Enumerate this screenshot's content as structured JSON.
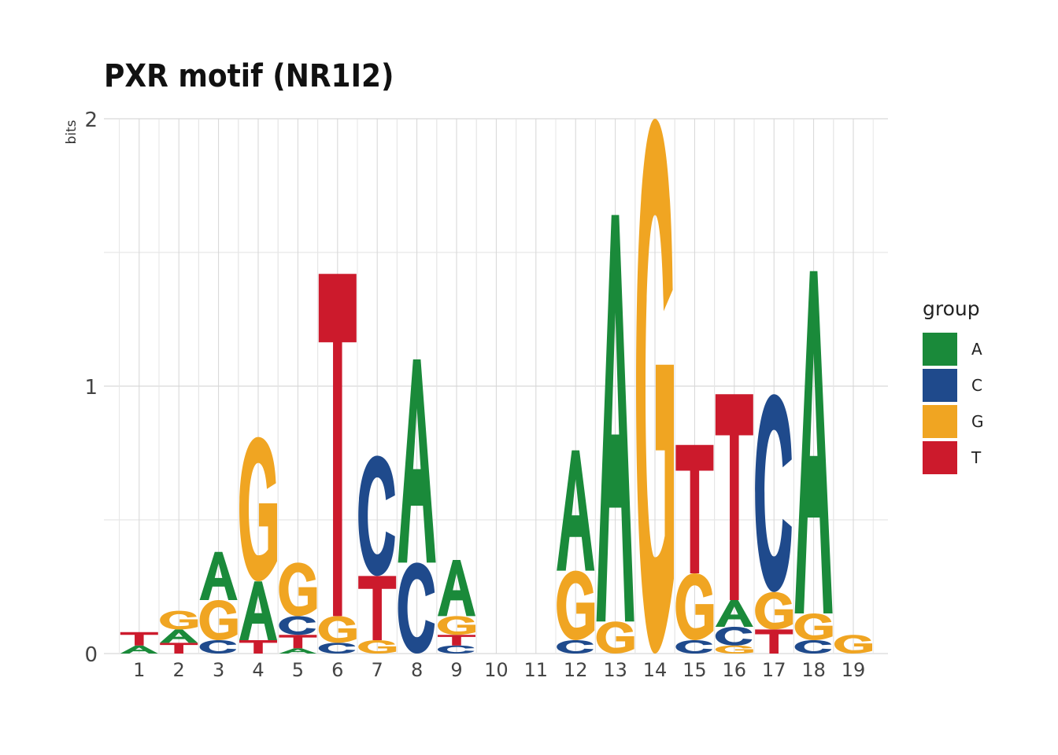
{
  "chart_data": {
    "type": "sequence_logo",
    "title": "PXR motif (NR1I2)",
    "ylabel": "bits",
    "xlabel": "",
    "ylim": [
      0,
      2
    ],
    "y_ticks": [
      "0",
      "1",
      "2"
    ],
    "x_ticks": [
      "1",
      "2",
      "3",
      "4",
      "5",
      "6",
      "7",
      "8",
      "9",
      "10",
      "11",
      "12",
      "13",
      "14",
      "15",
      "16",
      "17",
      "18",
      "19"
    ],
    "grid": true,
    "legend": {
      "title": "group",
      "position": "right",
      "entries": [
        {
          "label": "A",
          "color": "#1a8a3a"
        },
        {
          "label": "C",
          "color": "#1f4a8c"
        },
        {
          "label": "G",
          "color": "#f0a522"
        },
        {
          "label": "T",
          "color": "#cc1a2c"
        }
      ]
    },
    "positions": [
      {
        "pos": 1,
        "stack": [
          [
            "A",
            0.03
          ],
          [
            "T",
            0.05
          ]
        ]
      },
      {
        "pos": 2,
        "stack": [
          [
            "T",
            0.04
          ],
          [
            "A",
            0.05
          ],
          [
            "G",
            0.07
          ]
        ]
      },
      {
        "pos": 3,
        "stack": [
          [
            "C",
            0.05
          ],
          [
            "G",
            0.15
          ],
          [
            "A",
            0.18
          ]
        ]
      },
      {
        "pos": 4,
        "stack": [
          [
            "T",
            0.05
          ],
          [
            "A",
            0.22
          ],
          [
            "G",
            0.54
          ]
        ]
      },
      {
        "pos": 5,
        "stack": [
          [
            "A",
            0.02
          ],
          [
            "T",
            0.05
          ],
          [
            "C",
            0.07
          ],
          [
            "G",
            0.2
          ]
        ]
      },
      {
        "pos": 6,
        "stack": [
          [
            "C",
            0.04
          ],
          [
            "G",
            0.1
          ],
          [
            "T",
            1.28
          ]
        ]
      },
      {
        "pos": 7,
        "stack": [
          [
            "G",
            0.05
          ],
          [
            "T",
            0.24
          ],
          [
            "C",
            0.45
          ]
        ]
      },
      {
        "pos": 8,
        "stack": [
          [
            "C",
            0.34
          ],
          [
            "A",
            0.76
          ]
        ]
      },
      {
        "pos": 9,
        "stack": [
          [
            "C",
            0.03
          ],
          [
            "T",
            0.04
          ],
          [
            "G",
            0.07
          ],
          [
            "A",
            0.21
          ]
        ]
      },
      {
        "pos": 10,
        "stack": []
      },
      {
        "pos": 11,
        "stack": []
      },
      {
        "pos": 12,
        "stack": [
          [
            "C",
            0.05
          ],
          [
            "G",
            0.26
          ],
          [
            "A",
            0.45
          ]
        ]
      },
      {
        "pos": 13,
        "stack": [
          [
            "G",
            0.12
          ],
          [
            "A",
            1.52
          ]
        ]
      },
      {
        "pos": 14,
        "stack": [
          [
            "G",
            2.0
          ]
        ]
      },
      {
        "pos": 15,
        "stack": [
          [
            "C",
            0.05
          ],
          [
            "G",
            0.25
          ],
          [
            "T",
            0.48
          ]
        ]
      },
      {
        "pos": 16,
        "stack": [
          [
            "G",
            0.03
          ],
          [
            "C",
            0.07
          ],
          [
            "A",
            0.1
          ],
          [
            "T",
            0.77
          ]
        ]
      },
      {
        "pos": 17,
        "stack": [
          [
            "T",
            0.09
          ],
          [
            "G",
            0.14
          ],
          [
            "C",
            0.74
          ]
        ]
      },
      {
        "pos": 18,
        "stack": [
          [
            "C",
            0.05
          ],
          [
            "G",
            0.1
          ],
          [
            "A",
            1.28
          ]
        ]
      },
      {
        "pos": 19,
        "stack": [
          [
            "G",
            0.07
          ]
        ]
      }
    ]
  }
}
